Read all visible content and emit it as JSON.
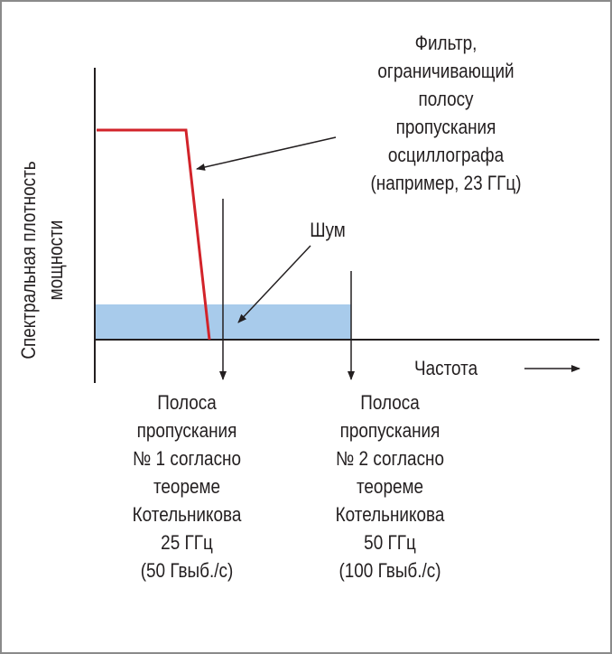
{
  "diagram": {
    "colors": {
      "axis": "#231f20",
      "filter_curve": "#d2232a",
      "noise_band": "#a8cbeb",
      "frame_border": "#8a8a8a"
    },
    "y_axis_label": "Спектральная плотность\nмощности",
    "x_axis_label": "Частота",
    "filter_label": "Фильтр,\nограничивающий\nполосу\nпропускания\nосциллографа\n(например, 23 ГГц)",
    "noise_label": "Шум",
    "bandwidth_1_label": "Полоса\nпропускания\n№ 1 согласно\nтеореме\nКотельникова\n25 ГГц\n(50 Гвыб./с)",
    "bandwidth_2_label": "Полоса\nпропускания\n№ 2 согласно\nтеореме\nКотельникова\n50 ГГц\n(100 Гвыб./с)"
  }
}
